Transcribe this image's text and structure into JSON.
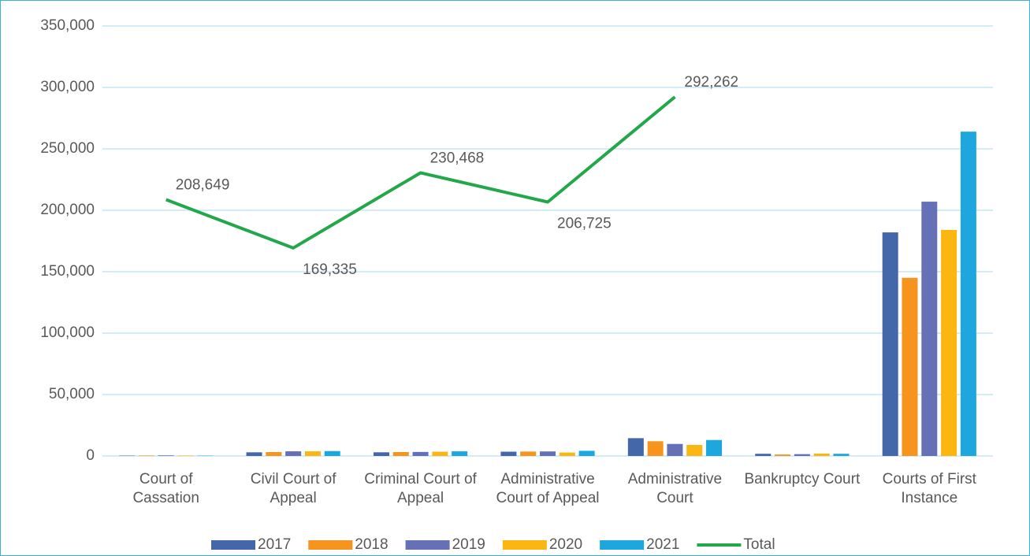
{
  "chart_data": {
    "type": "bar",
    "categories": [
      "Court of Cassation",
      "Civil Court of Appeal",
      "Criminal Court of Appeal",
      "Administrative Court of Appeal",
      "Administrative Court",
      "Bankruptcy Court",
      "Courts of First Instance"
    ],
    "series": [
      {
        "name": "2017",
        "color": "#4467a9",
        "values": [
          300,
          3000,
          3000,
          3500,
          14500,
          1800,
          182000
        ]
      },
      {
        "name": "2018",
        "color": "#f7941d",
        "values": [
          400,
          3200,
          3200,
          3600,
          12000,
          1200,
          145000
        ]
      },
      {
        "name": "2019",
        "color": "#6570b7",
        "values": [
          500,
          3800,
          3300,
          3700,
          9800,
          1500,
          207000
        ]
      },
      {
        "name": "2020",
        "color": "#fbb612",
        "values": [
          400,
          3800,
          3500,
          2800,
          9000,
          2000,
          184000
        ]
      },
      {
        "name": "2021",
        "color": "#1ea7df",
        "values": [
          300,
          4000,
          3800,
          4200,
          13000,
          1800,
          264000
        ]
      },
      {
        "name": "Total",
        "type": "line",
        "color": "#22a84a",
        "values": [
          208649,
          169335,
          230468,
          206725,
          292262,
          null,
          null
        ],
        "value_labels": [
          "208,649",
          "169,335",
          "230,468",
          "206,725",
          "292,262",
          null,
          null
        ]
      }
    ],
    "ylim": [
      0,
      350000
    ],
    "yticks": [
      {
        "value": 0,
        "label": "0"
      },
      {
        "value": 50000,
        "label": "50,000"
      },
      {
        "value": 100000,
        "label": "100,000"
      },
      {
        "value": 150000,
        "label": "150,000"
      },
      {
        "value": 200000,
        "label": "200,000"
      },
      {
        "value": 250000,
        "label": "250,000"
      },
      {
        "value": 300000,
        "label": "300,000"
      },
      {
        "value": 350000,
        "label": "350,000"
      }
    ],
    "grid": true,
    "legend": "bottom"
  }
}
